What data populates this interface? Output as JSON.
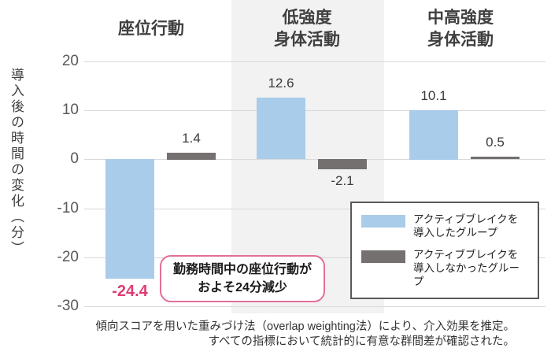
{
  "chart_data": {
    "type": "bar",
    "title": "",
    "categories": [
      "座位行動",
      "低強度\n身体活動",
      "中高強度\n身体活動"
    ],
    "series": [
      {
        "name": "アクティブブレイクを導入したグループ",
        "color": "#A9CCEA",
        "values": [
          -24.4,
          12.6,
          10.1
        ]
      },
      {
        "name": "アクティブブレイクを導入しなかったグループ",
        "color": "#747070",
        "values": [
          1.4,
          -2.1,
          0.5
        ]
      }
    ],
    "ylabel": "導入後の時間の変化（分）",
    "yticks": [
      20,
      10,
      0,
      -10,
      -20,
      -30
    ],
    "ylim": [
      -30,
      20
    ],
    "grid": true,
    "legend_position": "bottom-right",
    "highlighted_band_category": "低強度\n身体活動",
    "highlighted_value": "-24.4",
    "highlight_color": "#E03C73"
  },
  "callout": {
    "line1": "勤務時間中の座位行動が",
    "line2": "およそ24分減少"
  },
  "legend": {
    "items": [
      {
        "line1": "アクティブブレイクを",
        "line2": "導入したグループ",
        "color": "#A9CCEA"
      },
      {
        "line1": "アクティブブレイクを",
        "line2": "導入しなかったグループ",
        "color": "#747070"
      }
    ]
  },
  "footer": {
    "line1": "傾向スコアを用いた重みづけ法（overlap weighting法）により、介入効果を推定。",
    "line2": "すべての指標において統計的に有意な群間差が確認された。"
  },
  "colors": {
    "band": "#F2F2F2",
    "gridline": "#D9D9D9",
    "tick_text": "#595959",
    "header_text": "#3F3F3F",
    "callout_border": "#E36E9B",
    "legend_border": "#595959"
  }
}
